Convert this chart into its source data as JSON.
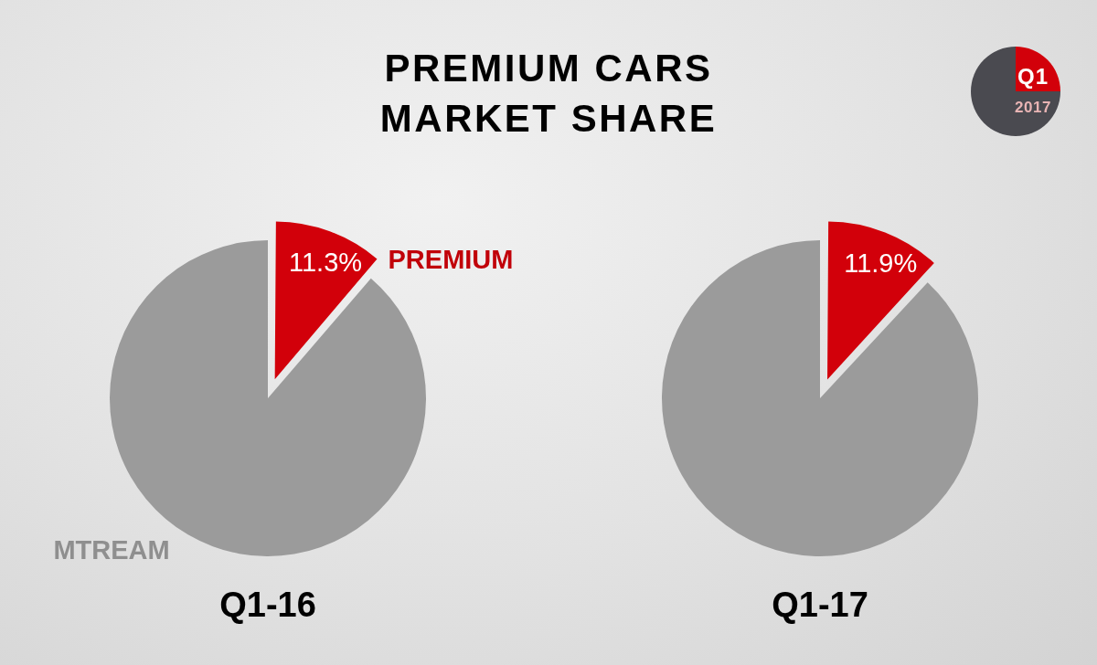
{
  "chart_data": [
    {
      "type": "pie",
      "title": "PREMIUM CARS MARKET SHARE",
      "xlabel": "Q1-16",
      "categories": [
        "PREMIUM",
        "MTREAM"
      ],
      "values": [
        11.3,
        88.7
      ],
      "colors": [
        "#d2000a",
        "#9b9b9b"
      ],
      "value_labels": [
        "11.3%",
        null
      ]
    },
    {
      "type": "pie",
      "xlabel": "Q1-17",
      "categories": [
        null,
        null
      ],
      "values": [
        11.9,
        88.1
      ],
      "colors": [
        "#d2000a",
        "#9b9b9b"
      ],
      "value_labels": [
        "11.9%",
        null
      ],
      "annotations": [
        "Q1",
        "2017"
      ]
    }
  ]
}
